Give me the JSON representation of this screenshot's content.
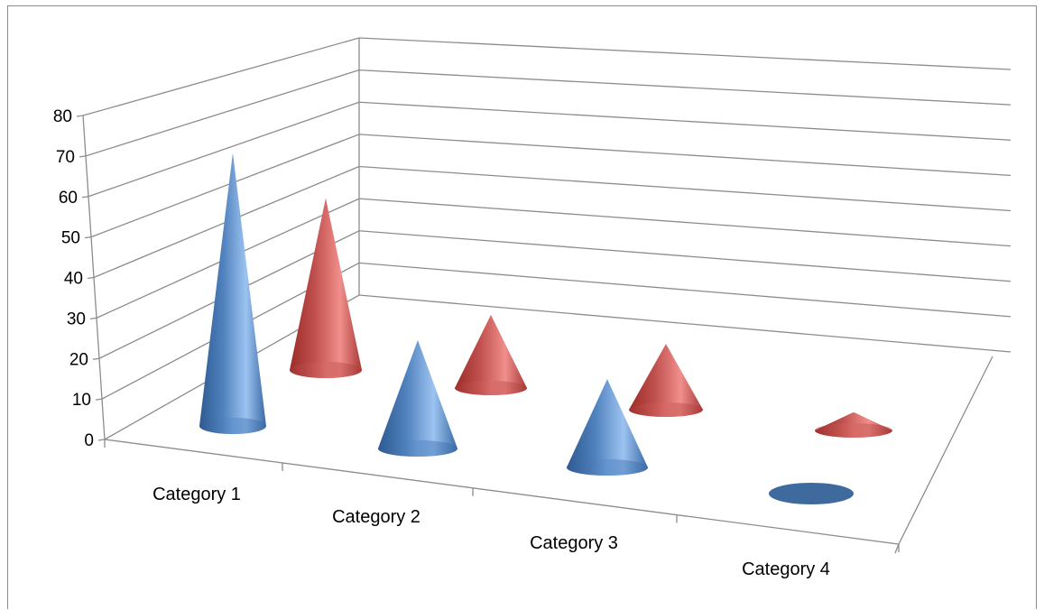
{
  "chart_data": {
    "type": "bar",
    "subtype": "3d-cone",
    "title": "",
    "xlabel": "",
    "ylabel": "",
    "categories": [
      "Category 1",
      "Category 2",
      "Category 3",
      "Category 4"
    ],
    "series": [
      {
        "color": "#4f81bd",
        "values": [
          68,
          27,
          22,
          0
        ]
      },
      {
        "color": "#c0504d",
        "values": [
          47,
          20,
          18,
          5
        ]
      }
    ],
    "ylim": [
      0,
      80
    ],
    "yticks": [
      "0",
      "10",
      "20",
      "30",
      "40",
      "50",
      "60",
      "70",
      "80"
    ],
    "grid": true,
    "legend": "none"
  }
}
